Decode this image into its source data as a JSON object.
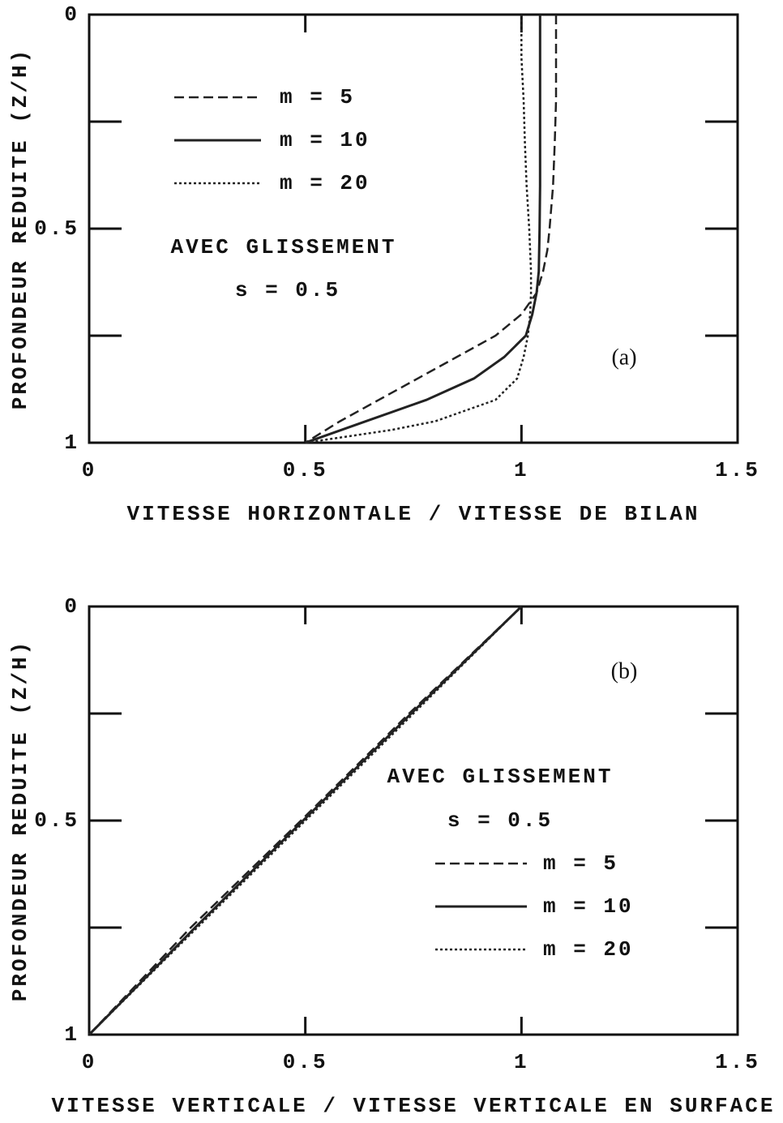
{
  "chart_data": [
    {
      "type": "line",
      "panel_label": "(a)",
      "xlabel": "VITESSE HORIZONTALE / VITESSE DE BILAN",
      "ylabel": "PROFONDEUR REDUITE (Z/H)",
      "annotations": [
        "AVEC GLISSEMENT",
        "s = 0.5"
      ],
      "xlim": [
        0,
        1.5
      ],
      "ylim": [
        1,
        0
      ],
      "xticks": [
        0,
        0.5,
        1,
        1.5
      ],
      "yticks": [
        0,
        0.5,
        1
      ],
      "minor_yticks": [
        0.25,
        0.75
      ],
      "legend": "upper left",
      "series": [
        {
          "name": "m = 5",
          "color": "#222222",
          "linestyle": "dashed",
          "x": [
            1.08,
            1.08,
            1.08,
            1.077,
            1.073,
            1.065,
            1.06,
            1.05,
            1.035,
            1.0,
            0.94,
            0.85,
            0.76,
            0.67,
            0.58,
            0.5
          ],
          "values": [
            0,
            0.1,
            0.2,
            0.3,
            0.4,
            0.5,
            0.55,
            0.6,
            0.65,
            0.7,
            0.75,
            0.8,
            0.85,
            0.9,
            0.95,
            1
          ]
        },
        {
          "name": "m = 10",
          "color": "#222222",
          "linestyle": "solid",
          "x": [
            1.043,
            1.043,
            1.043,
            1.043,
            1.043,
            1.042,
            1.041,
            1.04,
            1.035,
            1.025,
            1.01,
            0.96,
            0.89,
            0.78,
            0.64,
            0.5
          ],
          "values": [
            0,
            0.1,
            0.2,
            0.3,
            0.4,
            0.5,
            0.55,
            0.6,
            0.65,
            0.7,
            0.75,
            0.8,
            0.85,
            0.9,
            0.95,
            1
          ]
        },
        {
          "name": "m = 20",
          "color": "#222222",
          "linestyle": "dotted",
          "x": [
            1.0,
            1.0,
            1.005,
            1.008,
            1.012,
            1.018,
            1.02,
            1.022,
            1.022,
            1.02,
            1.015,
            1.005,
            0.99,
            0.94,
            0.8,
            0.7,
            0.5
          ],
          "values": [
            0,
            0.1,
            0.2,
            0.3,
            0.4,
            0.5,
            0.55,
            0.6,
            0.65,
            0.7,
            0.75,
            0.8,
            0.85,
            0.9,
            0.95,
            0.97,
            1
          ]
        }
      ]
    },
    {
      "type": "line",
      "panel_label": "(b)",
      "xlabel": "VITESSE VERTICALE / VITESSE VERTICALE EN SURFACE",
      "ylabel": "PROFONDEUR REDUITE (Z/H)",
      "annotations": [
        "AVEC GLISSEMENT",
        "s = 0.5"
      ],
      "xlim": [
        0,
        1.5
      ],
      "ylim": [
        1,
        0
      ],
      "xticks": [
        0,
        0.5,
        1,
        1.5
      ],
      "yticks": [
        0,
        0.5,
        1
      ],
      "minor_yticks": [
        0.25,
        0.75
      ],
      "legend": "center right",
      "series": [
        {
          "name": "m = 5",
          "color": "#222222",
          "linestyle": "dashed",
          "x": [
            1,
            0.74,
            0.49,
            0.235,
            0
          ],
          "values": [
            0,
            0.25,
            0.5,
            0.75,
            1
          ]
        },
        {
          "name": "m = 10",
          "color": "#222222",
          "linestyle": "solid",
          "x": [
            1,
            0.745,
            0.495,
            0.245,
            0
          ],
          "values": [
            0,
            0.25,
            0.5,
            0.75,
            1
          ]
        },
        {
          "name": "m = 20",
          "color": "#222222",
          "linestyle": "dotted",
          "x": [
            1,
            0.75,
            0.5,
            0.25,
            0
          ],
          "values": [
            0,
            0.25,
            0.5,
            0.75,
            1
          ]
        }
      ]
    }
  ]
}
